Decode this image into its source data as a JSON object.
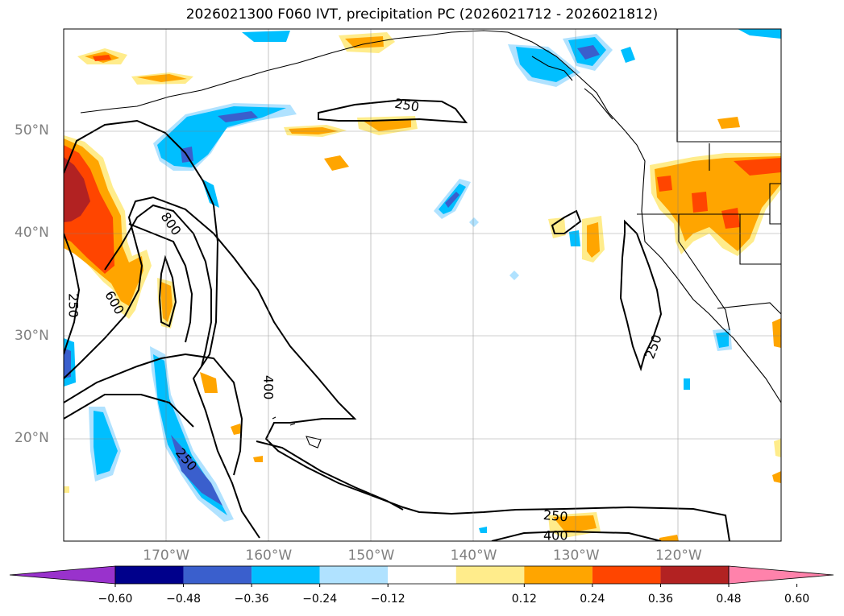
{
  "title": "2026021300 F060 IVT, precipitation PC (2026021712 - 2026021812)",
  "map": {
    "projection": "PlateCarree",
    "lon_range": [
      -180,
      -110
    ],
    "lat_range": [
      10,
      60
    ],
    "lat_ticks": [
      {
        "value": 50,
        "label": "50°N"
      },
      {
        "value": 40,
        "label": "40°N"
      },
      {
        "value": 30,
        "label": "30°N"
      },
      {
        "value": 20,
        "label": "20°N"
      }
    ],
    "lon_ticks": [
      {
        "value": -170,
        "label": "170°W"
      },
      {
        "value": -160,
        "label": "160°W"
      },
      {
        "value": -150,
        "label": "150°W"
      },
      {
        "value": -140,
        "label": "140°W"
      },
      {
        "value": -130,
        "label": "130°W"
      },
      {
        "value": -120,
        "label": "120°W"
      }
    ],
    "grid": true,
    "tick_color": "#808080"
  },
  "ivt_contours": {
    "color": "#000000",
    "labels": [
      {
        "text": "250",
        "lon": -146.5,
        "lat": 52.6,
        "rot": 10
      },
      {
        "text": "800",
        "lon": -169.5,
        "lat": 41.0,
        "rot": 55
      },
      {
        "text": "600",
        "lon": -175.0,
        "lat": 33.3,
        "rot": 60
      },
      {
        "text": "250",
        "lon": -179.0,
        "lat": 33.0,
        "rot": 90
      },
      {
        "text": "400",
        "lon": -160.0,
        "lat": 25.0,
        "rot": 90
      },
      {
        "text": "250",
        "lon": -168.0,
        "lat": 18.0,
        "rot": 50
      },
      {
        "text": "250",
        "lon": -122.5,
        "lat": 29.0,
        "rot": -70
      },
      {
        "text": "250",
        "lon": -132.0,
        "lat": 12.5,
        "rot": 5
      },
      {
        "text": "400",
        "lon": -132.0,
        "lat": 10.6,
        "rot": 0
      }
    ]
  },
  "colorbar": {
    "levels": [
      "−0.60",
      "−0.48",
      "−0.36",
      "−0.24",
      "−0.12",
      "0.12",
      "0.24",
      "0.36",
      "0.48",
      "0.60"
    ],
    "colors": [
      "#9932cc",
      "#00008b",
      "#3a5fcd",
      "#00bfff",
      "#b0e2ff",
      "#ffffff",
      "#ffec8b",
      "#ffa500",
      "#ff4500",
      "#b22222",
      "#ff82ab"
    ]
  }
}
